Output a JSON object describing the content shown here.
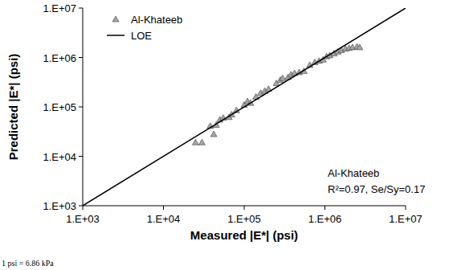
{
  "chart_data": {
    "type": "scatter",
    "x_label": "Measured |E*| (psi)",
    "y_label": "Predicted |E*| (psi)",
    "log": true,
    "grid": false,
    "legend": "top-left",
    "xlim": [
      1000,
      10000000
    ],
    "ylim": [
      1000,
      10000000
    ],
    "xticks": [
      {
        "value": 1000,
        "label": "1.E+03"
      },
      {
        "value": 10000,
        "label": "1.E+04"
      },
      {
        "value": 100000,
        "label": "1.E+05"
      },
      {
        "value": 1000000,
        "label": "1.E+06"
      },
      {
        "value": 10000000,
        "label": "1.E+07"
      }
    ],
    "yticks": [
      {
        "value": 1000,
        "label": "1.E+03"
      },
      {
        "value": 10000,
        "label": "1.E+04"
      },
      {
        "value": 100000,
        "label": "1.E+05"
      },
      {
        "value": 1000000,
        "label": "1.E+06"
      },
      {
        "value": 10000000,
        "label": "1.E+07"
      }
    ],
    "annotations": [
      "Al-Khateeb",
      "R²=0.97, Se/Sy=0.17",
      "1 psi = 6.86 kPa"
    ],
    "series": [
      {
        "name": "Al-Khateeb",
        "type": "scatter",
        "marker": "triangle",
        "color": "#a6a6a6",
        "x": [
          25000,
          30000,
          38000,
          42000,
          45000,
          50000,
          55000,
          65000,
          70000,
          80000,
          100000,
          110000,
          120000,
          140000,
          160000,
          180000,
          200000,
          250000,
          280000,
          300000,
          350000,
          380000,
          420000,
          480000,
          550000,
          650000,
          750000,
          850000,
          950000,
          1050000,
          1150000,
          1300000,
          1450000,
          1600000,
          1800000,
          2000000,
          2200000,
          2500000,
          2700000
        ],
        "values": [
          19000,
          19000,
          41000,
          28000,
          43000,
          55000,
          60000,
          62000,
          70000,
          85000,
          110000,
          130000,
          120000,
          160000,
          190000,
          210000,
          230000,
          300000,
          350000,
          380000,
          400000,
          450000,
          480000,
          500000,
          530000,
          700000,
          800000,
          850000,
          900000,
          1050000,
          1100000,
          1200000,
          1300000,
          1400000,
          1500000,
          1550000,
          1600000,
          1650000,
          1600000
        ]
      },
      {
        "name": "LOE",
        "type": "line",
        "line_style": "solid",
        "color": "#000000",
        "x": [
          1000,
          10000000
        ],
        "values": [
          1000,
          10000000
        ]
      }
    ]
  }
}
